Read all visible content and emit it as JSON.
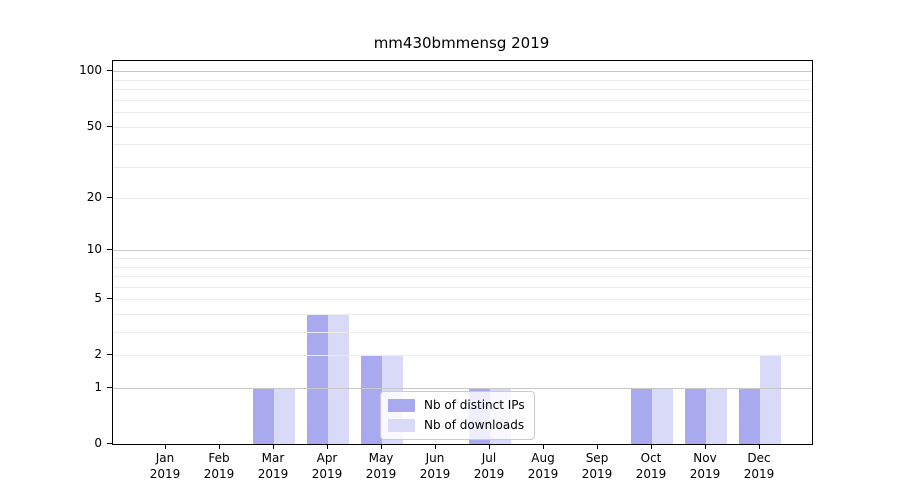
{
  "title": "mm430bmmensg 2019",
  "chart_data": {
    "type": "bar",
    "title": "mm430bmmensg 2019",
    "categories": [
      "Jan",
      "Feb",
      "Mar",
      "Apr",
      "May",
      "Jun",
      "Jul",
      "Aug",
      "Sep",
      "Oct",
      "Nov",
      "Dec"
    ],
    "tick_year": "2019",
    "series": [
      {
        "name": "Nb of distinct IPs",
        "color": "#a9a9f0",
        "values": [
          0,
          0,
          1,
          4,
          2,
          0,
          1,
          0,
          0,
          1,
          1,
          1
        ]
      },
      {
        "name": "Nb of downloads",
        "color": "#d9d9f8",
        "values": [
          0,
          0,
          1,
          4,
          2,
          0,
          1,
          0,
          0,
          1,
          1,
          2
        ]
      }
    ],
    "yscale": "log1p",
    "ylim": [
      0,
      114
    ],
    "yticks": [
      0,
      1,
      2,
      5,
      10,
      20,
      50,
      100
    ],
    "grid_minor_values": [
      2,
      3,
      4,
      5,
      6,
      7,
      8,
      9,
      20,
      30,
      40,
      50,
      60,
      70,
      80,
      90
    ],
    "grid_major_values": [
      1,
      10,
      100
    ],
    "grid": "horizontal",
    "legend_position": "lower center",
    "colors": {
      "grid_minor": "#ececec",
      "grid_major": "#c8c8c8",
      "axis": "#000000",
      "background": "#ffffff",
      "legend_border": "#cccccc"
    }
  }
}
